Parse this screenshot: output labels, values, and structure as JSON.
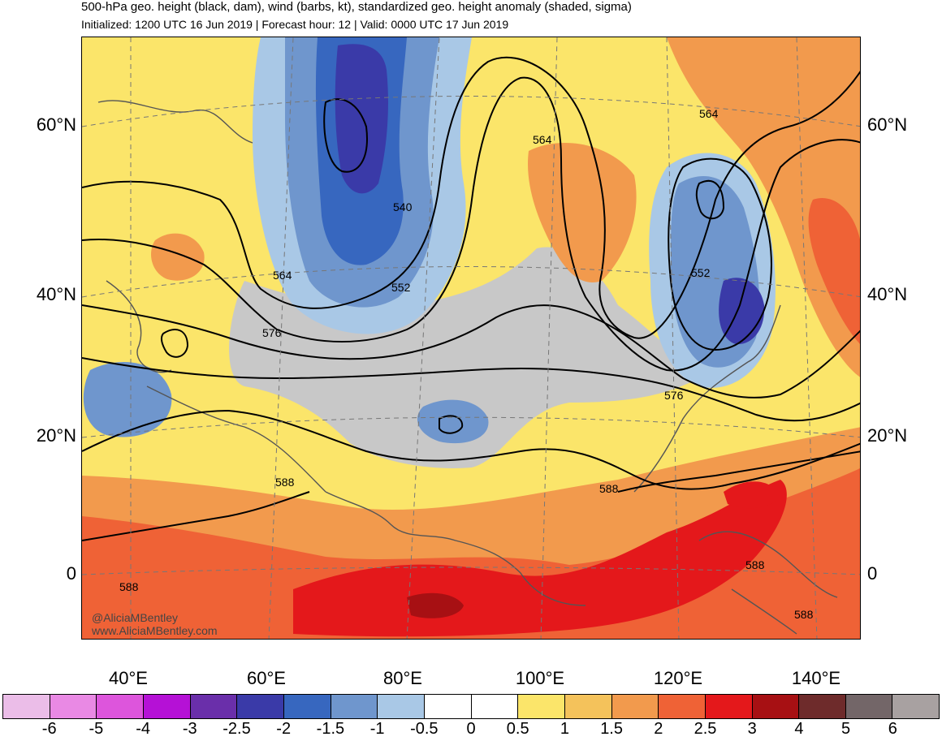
{
  "header": {
    "title": "500-hPa geo. height (black, dam), wind (barbs, kt), standardized geo. height anomaly (shaded, sigma)",
    "subtitle": "Initialized: 1200 UTC 16 Jun 2019 | Forecast hour: 12 | Valid: 0000 UTC 17 Jun 2019"
  },
  "latitude_labels": [
    "60°N",
    "40°N",
    "20°N",
    "0"
  ],
  "longitude_labels": [
    "40°E",
    "60°E",
    "80°E",
    "100°E",
    "120°E",
    "140°E"
  ],
  "contour_labels": [
    "564",
    "564",
    "540",
    "564",
    "552",
    "552",
    "576",
    "576",
    "588",
    "588",
    "588",
    "588",
    "588"
  ],
  "credit": [
    "@AliciaMBentley",
    "www.AliciaMBentley.com"
  ],
  "colorbar": {
    "colors": [
      "#ebbde8",
      "#e989e4",
      "#dd55dc",
      "#b511d6",
      "#6a2faa",
      "#3a3aa8",
      "#3767bf",
      "#6f96cd",
      "#a9c8e6",
      "#ffffff",
      "#ffffff",
      "#fbe56a",
      "#f4c25b",
      "#f29a4d",
      "#ef6236",
      "#e4181b",
      "#a71013",
      "#6e2b2b",
      "#736668",
      "#a8a1a1"
    ],
    "labels": [
      "-6",
      "-5",
      "-4",
      "-3",
      "-2.5",
      "-2",
      "-1.5",
      "-1",
      "-0.5",
      "0",
      "0.5",
      "1",
      "1.5",
      "2",
      "2.5",
      "3",
      "4",
      "5",
      "6"
    ]
  },
  "colors": {
    "negative_strong": "#3a3aa8",
    "negative_weak": "#a9c8e6",
    "neutral": "#c8c8c8",
    "positive_weak": "#fbe56a",
    "positive_strong": "#e4181b"
  }
}
